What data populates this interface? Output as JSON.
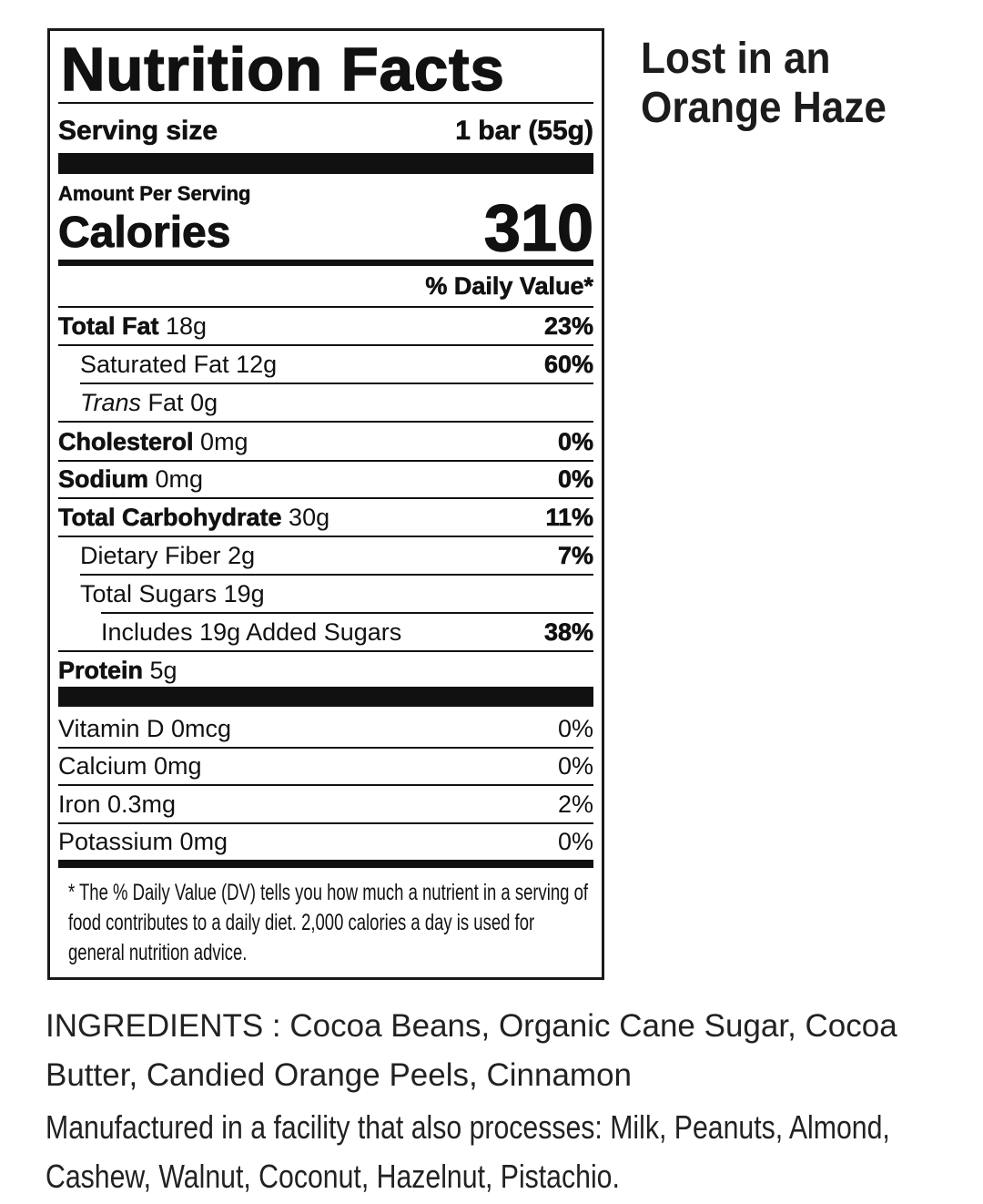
{
  "label": {
    "title": "Nutrition Facts",
    "serving_size_label": "Serving size",
    "serving_size_value": "1 bar (55g)",
    "amount_per_serving": "Amount Per Serving",
    "calories_label": "Calories",
    "calories_value": "310",
    "daily_value_header": "% Daily Value*",
    "nutrients": [
      {
        "name": "Total Fat",
        "amount": "18g",
        "dv": "23%",
        "bold": true,
        "indent": 0
      },
      {
        "name": "Saturated Fat",
        "amount": "12g",
        "dv": "60%",
        "bold": false,
        "indent": 1
      },
      {
        "name": "Trans",
        "name_suffix": "Fat",
        "amount": "0g",
        "dv": "",
        "bold": false,
        "indent": 1,
        "italic": true
      },
      {
        "name": "Cholesterol",
        "amount": "0mg",
        "dv": "0%",
        "bold": true,
        "indent": 0
      },
      {
        "name": "Sodium",
        "amount": "0mg",
        "dv": "0%",
        "bold": true,
        "indent": 0
      },
      {
        "name": "Total Carbohydrate",
        "amount": "30g",
        "dv": "11%",
        "bold": true,
        "indent": 0
      },
      {
        "name": "Dietary Fiber",
        "amount": "2g",
        "dv": "7%",
        "bold": false,
        "indent": 1
      },
      {
        "name": "Total Sugars",
        "amount": "19g",
        "dv": "",
        "bold": false,
        "indent": 1
      },
      {
        "name": "Includes 19g Added Sugars",
        "amount": "",
        "dv": "38%",
        "bold": false,
        "indent": 2
      },
      {
        "name": "Protein",
        "amount": "5g",
        "dv": "",
        "bold": true,
        "indent": 0
      }
    ],
    "vitamins": [
      {
        "name": "Vitamin D 0mcg",
        "dv": "0%"
      },
      {
        "name": "Calcium 0mg",
        "dv": "0%"
      },
      {
        "name": "Iron 0.3mg",
        "dv": "2%"
      },
      {
        "name": "Potassium 0mg",
        "dv": "0%"
      }
    ],
    "footnote": "* The % Daily Value (DV) tells you how much a nutrient in a serving of food contributes to a daily diet. 2,000 calories a day is used for general nutrition advice."
  },
  "product": {
    "name_line1": "Lost in an",
    "name_line2": "Orange Haze"
  },
  "ingredients": {
    "line1": "INGREDIENTS : Cocoa Beans, Organic Cane Sugar, Cocoa",
    "line2": "Butter, Candied Orange Peels, Cinnamon"
  },
  "allergen": {
    "line1": "Manufactured in a facility that also processes: Milk, Peanuts, Almond,",
    "line2": "Cashew, Walnut, Coconut, Hazelnut, Pistachio."
  }
}
